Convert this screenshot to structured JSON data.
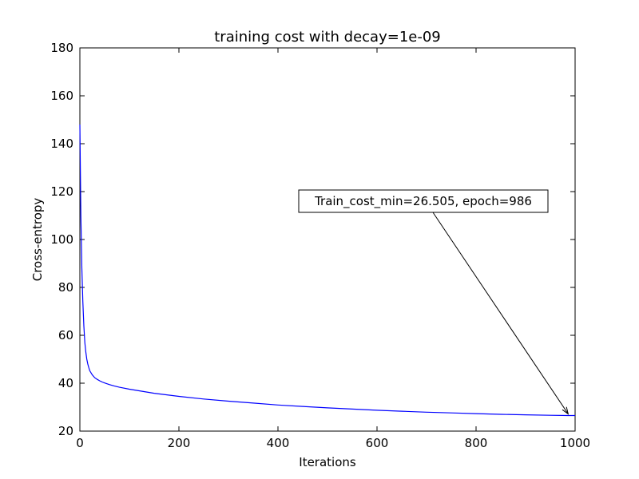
{
  "chart_data": {
    "type": "line",
    "title": "training cost with decay=1e-09",
    "xlabel": "Iterations",
    "ylabel": "Cross-entropy",
    "xlim": [
      0,
      1000
    ],
    "ylim": [
      20,
      180
    ],
    "xticks": [
      0,
      200,
      400,
      600,
      800,
      1000
    ],
    "yticks": [
      20,
      40,
      60,
      80,
      100,
      120,
      140,
      160,
      180
    ],
    "grid": false,
    "series": [
      {
        "color": "#0000ff",
        "x": [
          0,
          2,
          4,
          6,
          8,
          10,
          12,
          14,
          16,
          18,
          20,
          25,
          30,
          35,
          40,
          45,
          50,
          60,
          70,
          80,
          100,
          150,
          200,
          250,
          300,
          350,
          400,
          450,
          500,
          550,
          600,
          650,
          700,
          750,
          800,
          850,
          900,
          950,
          986,
          1000
        ],
        "y": [
          148,
          110,
          88,
          74,
          64,
          57,
          53,
          50,
          48,
          46.5,
          45.2,
          43.5,
          42.3,
          41.6,
          41.0,
          40.5,
          40.1,
          39.4,
          38.8,
          38.3,
          37.5,
          35.8,
          34.5,
          33.4,
          32.5,
          31.7,
          30.9,
          30.3,
          29.7,
          29.2,
          28.7,
          28.3,
          27.9,
          27.6,
          27.3,
          27.0,
          26.8,
          26.6,
          26.505,
          26.5
        ]
      }
    ],
    "annotation": {
      "text": "Train_cost_min=26.505, epoch=986",
      "point": [
        986,
        26.505
      ],
      "text_anchor_data": [
        720,
        112
      ]
    }
  }
}
